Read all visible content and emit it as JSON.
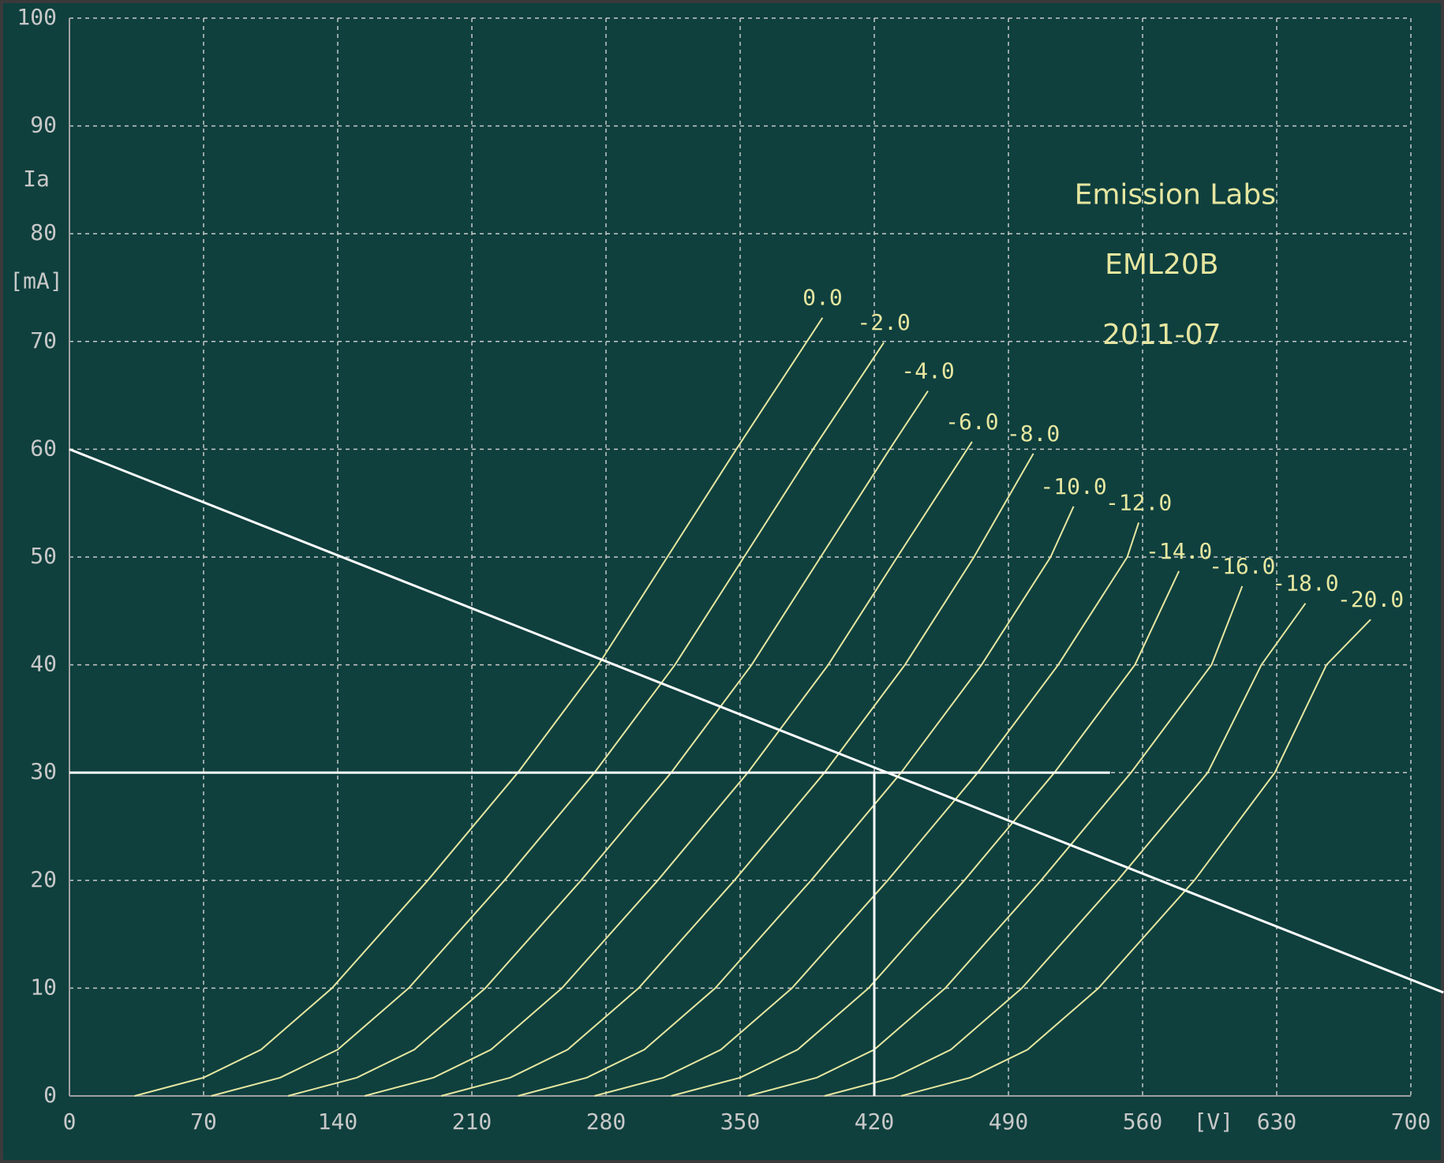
{
  "chart_data": {
    "type": "line",
    "xlim": [
      0,
      700
    ],
    "ylim": [
      0,
      100
    ],
    "xticks": [
      0,
      70,
      140,
      210,
      280,
      350,
      420,
      490,
      560,
      630,
      700
    ],
    "yticks": [
      0,
      10,
      20,
      30,
      40,
      50,
      60,
      70,
      80,
      90,
      100
    ],
    "grid": true,
    "x_label": "[V]",
    "y_label": "Ia",
    "y_unit": "[mA]",
    "annotations": [
      "Emission Labs",
      "EML20B",
      "2011-07"
    ],
    "color": "#e6e6a0",
    "series": [
      {
        "name": "0.0",
        "x": [
          34,
          70,
          100,
          137,
          187,
          234,
          276,
          312,
          348,
          393
        ],
        "values": [
          0,
          1.7,
          4.3,
          10,
          20,
          30,
          40,
          50,
          60,
          72.2
        ]
      },
      {
        "name": "-2.0",
        "x": [
          74,
          110,
          140,
          177,
          227,
          274,
          316,
          352,
          388,
          425
        ],
        "values": [
          0,
          1.7,
          4.3,
          10,
          20,
          30,
          40,
          50,
          60,
          69.9
        ]
      },
      {
        "name": "-4.0",
        "x": [
          114,
          150,
          180,
          217,
          267,
          314,
          356,
          392,
          428,
          448
        ],
        "values": [
          0,
          1.7,
          4.3,
          10,
          20,
          30,
          40,
          50,
          60,
          65.4
        ]
      },
      {
        "name": "-6.0",
        "x": [
          154,
          190,
          220,
          257,
          307,
          354,
          396,
          432,
          471
        ],
        "values": [
          0,
          1.7,
          4.3,
          10,
          20,
          30,
          40,
          50,
          60.7
        ]
      },
      {
        "name": "-8.0",
        "x": [
          194,
          230,
          260,
          297,
          347,
          394,
          436,
          472,
          503
        ],
        "values": [
          0,
          1.7,
          4.3,
          10,
          20,
          30,
          40,
          50,
          59.6
        ]
      },
      {
        "name": "-10.0",
        "x": [
          234,
          270,
          300,
          337,
          387,
          434,
          476,
          512,
          524
        ],
        "values": [
          0,
          1.7,
          4.3,
          10,
          20,
          30,
          40,
          50,
          54.7
        ]
      },
      {
        "name": "-12.0",
        "x": [
          274,
          310,
          340,
          377,
          427,
          474,
          516,
          552,
          558
        ],
        "values": [
          0,
          1.7,
          4.3,
          10,
          20,
          30,
          40,
          50,
          53.2
        ]
      },
      {
        "name": "-14.0",
        "x": [
          314,
          350,
          380,
          417,
          467,
          514,
          556,
          579
        ],
        "values": [
          0,
          1.7,
          4.3,
          10,
          20,
          30,
          40,
          48.7
        ]
      },
      {
        "name": "-16.0",
        "x": [
          354,
          390,
          420,
          457,
          507,
          554,
          596,
          612
        ],
        "values": [
          0,
          1.7,
          4.3,
          10,
          20,
          30,
          40,
          47.3
        ]
      },
      {
        "name": "-18.0",
        "x": [
          394,
          430,
          460,
          497,
          547,
          594,
          622,
          645
        ],
        "values": [
          0,
          1.7,
          4.3,
          10,
          20,
          30,
          40,
          45.7
        ]
      },
      {
        "name": "-20.0",
        "x": [
          434,
          470,
          500,
          537,
          587,
          629,
          656,
          679
        ],
        "values": [
          0,
          1.7,
          4.3,
          10,
          20,
          30,
          40,
          44.2
        ]
      }
    ],
    "reference_lines": [
      {
        "x": [
          0,
          717
        ],
        "values": [
          60,
          9.6
        ]
      },
      {
        "x": [
          0,
          543
        ],
        "values": [
          30,
          30
        ]
      },
      {
        "x": [
          420,
          420
        ],
        "values": [
          30,
          0
        ]
      }
    ]
  }
}
